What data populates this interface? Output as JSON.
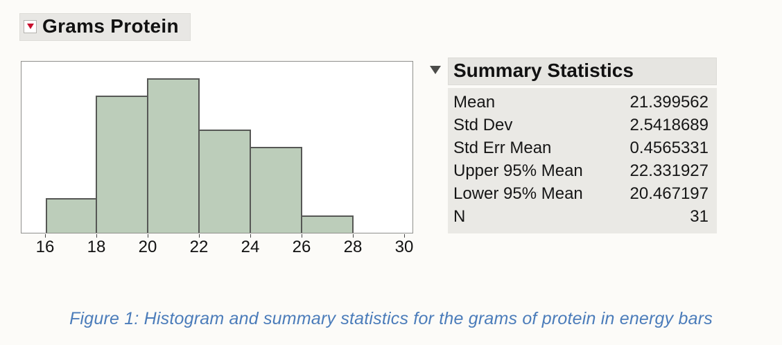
{
  "outline": {
    "title": "Grams Protein"
  },
  "summary": {
    "title": "Summary Statistics",
    "rows": [
      {
        "label": "Mean",
        "value": "21.399562"
      },
      {
        "label": "Std Dev",
        "value": "2.5418689"
      },
      {
        "label": "Std Err Mean",
        "value": "0.4565331"
      },
      {
        "label": "Upper 95% Mean",
        "value": "22.331927"
      },
      {
        "label": "Lower 95% Mean",
        "value": "20.467197"
      },
      {
        "label": "N",
        "value": "31"
      }
    ]
  },
  "chart_data": {
    "type": "bar",
    "title": "Grams Protein",
    "xlabel": "",
    "ylabel": "",
    "x_ticks": [
      16,
      18,
      20,
      22,
      24,
      26,
      28,
      30
    ],
    "bins": [
      [
        16,
        18
      ],
      [
        18,
        20
      ],
      [
        20,
        22
      ],
      [
        22,
        24
      ],
      [
        24,
        26
      ],
      [
        26,
        28
      ]
    ],
    "counts": [
      2,
      8,
      9,
      6,
      5,
      1
    ],
    "n_total": 31,
    "xlim": [
      16,
      30
    ],
    "grid": false,
    "legend": false,
    "bar_color": "#bccdba",
    "bar_border_color": "#565755"
  },
  "caption": "Figure 1: Histogram and summary statistics for the grams of protein in energy bars",
  "icons": {
    "red_triangle_menu": "red-triangle-menu-icon",
    "summary_disclosure": "disclosure-triangle-icon"
  },
  "colors": {
    "background": "#fcfbf8",
    "panel_gray": "#eae9e5",
    "header_gray": "#e8e7e4",
    "bar_fill": "#bccdba",
    "bar_border": "#565755",
    "caption_blue": "#4b7cba",
    "red_triangle": "#c8102e"
  }
}
